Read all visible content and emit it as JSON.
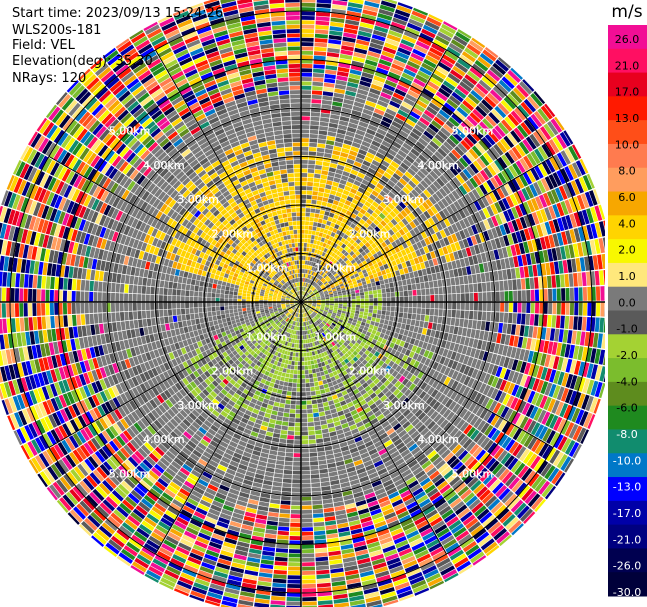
{
  "header": {
    "start_time": "Start time: 2023/09/13 15:24:26",
    "instrument": "WLS200s-181",
    "field": "Field: VEL",
    "elevation": "Elevation(deg): 35.30",
    "nrays": "NRays: 120"
  },
  "chart_data": {
    "type": "heatmap",
    "projection": "polar-ppi",
    "field": "VEL",
    "n_rays": 120,
    "range_rings_km": [
      1.0,
      2.0,
      3.0,
      4.0,
      5.0,
      6.0
    ],
    "ring_labels": [
      "1.00km",
      "2.00km",
      "3.00km",
      "4.00km",
      "5.00km"
    ],
    "max_range_km": 6.5,
    "azimuth_spokes_deg": [
      0,
      30,
      60,
      90,
      120,
      150,
      180,
      210,
      240,
      270,
      300,
      330
    ],
    "colorbar": {
      "unit": "m/s",
      "tick_labels": [
        "26.0",
        "21.0",
        "17.0",
        "13.0",
        "10.0",
        "8.0",
        "6.0",
        "4.0",
        "2.0",
        "1.0",
        "0.0",
        "-1.0",
        "-2.0",
        "-4.0",
        "-6.0",
        "-8.0",
        "-10.0",
        "-13.0",
        "-17.0",
        "-21.0",
        "-26.0",
        "-30.0"
      ],
      "colors": [
        "#f20e95",
        "#ff0f62",
        "#e8001e",
        "#ff1a00",
        "#ff4e18",
        "#ff7b4f",
        "#ff9d5e",
        "#f7a700",
        "#ffd400",
        "#f8f800",
        "#ffe87c",
        "#7a7a7a",
        "#5a5a5a",
        "#a4d233",
        "#7bbd2d",
        "#5e8c1e",
        "#1f8a1f",
        "#118c6e",
        "#0078c8",
        "#0000ff",
        "#0000a8",
        "#000080",
        "#000050",
        "#00003a"
      ]
    },
    "pattern_notes": {
      "near_field_positive_sector": "north-west to north-east, yellow (2.0 to 4.0 m/s)",
      "near_field_negative_sector": "south-west to south-east, light green (-1.0 to -2.0 m/s)",
      "far_field": "noise, random colors beyond about 4.5 km"
    }
  }
}
